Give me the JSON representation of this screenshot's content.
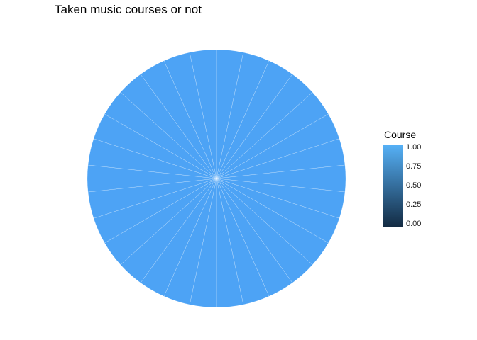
{
  "chart_data": {
    "type": "pie",
    "title": "Taken music courses or not",
    "slice_count": 30,
    "slice_values": [
      1,
      1,
      1,
      1,
      1,
      1,
      1,
      1,
      1,
      1,
      1,
      1,
      1,
      1,
      1,
      1,
      1,
      1,
      1,
      1,
      1,
      1,
      1,
      1,
      1,
      1,
      1,
      1,
      1,
      1
    ],
    "fill_values": [
      1,
      1,
      1,
      1,
      1,
      1,
      1,
      1,
      1,
      1,
      1,
      1,
      1,
      1,
      1,
      1,
      1,
      1,
      1,
      1,
      1,
      1,
      1,
      1,
      1,
      1,
      1,
      1,
      1,
      1
    ],
    "legend": {
      "title": "Course",
      "type": "continuous",
      "range": [
        0,
        1
      ],
      "ticks": [
        "0.00",
        "0.25",
        "0.50",
        "0.75",
        "1.00"
      ],
      "tick_values": [
        0,
        0.25,
        0.5,
        0.75,
        1
      ],
      "low_color": "#132B43",
      "high_color": "#56B1F7",
      "placement": "right"
    },
    "slice_color": "#4DA3F5",
    "slice_border_color": "#ffffff"
  }
}
